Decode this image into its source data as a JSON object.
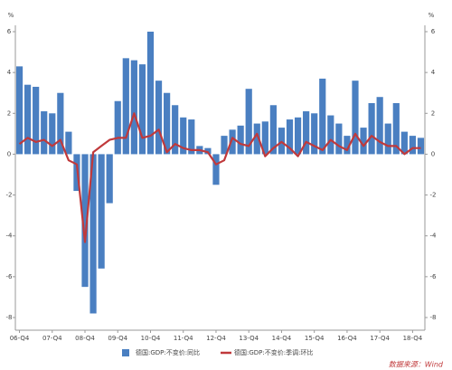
{
  "chart_data": {
    "type": "bar-line",
    "y_unit": "%",
    "y2_unit": "%",
    "source": "数据来源：Wind",
    "categories": [
      "06-Q4",
      null,
      null,
      null,
      "07-Q4",
      null,
      null,
      null,
      "08-Q4",
      null,
      null,
      null,
      "09-Q4",
      null,
      null,
      null,
      "10-Q4",
      null,
      null,
      null,
      "11-Q4",
      null,
      null,
      null,
      "12-Q4",
      null,
      null,
      null,
      "13-Q4",
      null,
      null,
      null,
      "14-Q4",
      null,
      null,
      null,
      "15-Q4",
      null,
      null,
      null,
      "16-Q4",
      null,
      null,
      null,
      "17-Q4",
      null,
      null,
      null,
      "18-Q4",
      null
    ],
    "series": [
      {
        "name": "德国:GDP:不变价:同比",
        "type": "bar",
        "color": "#4a7fc1",
        "values": [
          4.3,
          3.4,
          3.3,
          2.1,
          2.0,
          3.0,
          1.1,
          -1.8,
          -6.5,
          -7.8,
          -5.6,
          -2.4,
          2.6,
          4.7,
          4.6,
          4.4,
          6.0,
          3.6,
          3.0,
          2.4,
          1.8,
          1.7,
          0.4,
          0.3,
          -1.5,
          0.9,
          1.2,
          1.4,
          3.2,
          1.5,
          1.6,
          2.4,
          1.3,
          1.7,
          1.8,
          2.1,
          2.0,
          3.7,
          1.9,
          1.5,
          0.9,
          3.6,
          1.3,
          2.5,
          2.8,
          1.5,
          2.5,
          1.1,
          0.9,
          0.8
        ]
      },
      {
        "name": "德国:GDP:不变价:季调:环比",
        "type": "line",
        "axis": "y2",
        "color": "#c0393b",
        "values": [
          0.5,
          0.8,
          0.6,
          0.7,
          0.4,
          0.7,
          -0.3,
          -0.5,
          -4.3,
          0.1,
          0.4,
          0.7,
          0.8,
          0.8,
          2.0,
          0.8,
          0.9,
          1.2,
          0.1,
          0.5,
          0.3,
          0.2,
          0.2,
          0.1,
          -0.5,
          -0.3,
          0.8,
          0.5,
          0.4,
          1.0,
          -0.1,
          0.3,
          0.6,
          0.3,
          -0.1,
          0.6,
          0.4,
          0.2,
          0.7,
          0.4,
          0.2,
          1.0,
          0.4,
          0.9,
          0.6,
          0.4,
          0.4,
          0.0,
          0.3,
          0.3
        ]
      }
    ],
    "ylim": [
      -8,
      6
    ],
    "yticks": [
      -8,
      -6,
      -4,
      -2,
      0,
      2,
      4,
      6
    ],
    "y2lim": [
      -8,
      6
    ],
    "y2ticks": [
      -8,
      -6,
      -4,
      -2,
      0,
      2,
      4,
      6
    ],
    "grid": false
  }
}
